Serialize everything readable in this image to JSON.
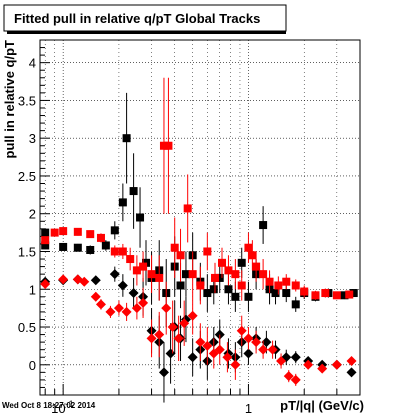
{
  "timestamp": "Wed Oct  8 18:27:02 2014",
  "chart_data": {
    "type": "scatter",
    "title": "Fitted pull in relative q/pT  Global Tracks",
    "xlabel": "pT/|q| (GeV/c)",
    "ylabel": "pull in relative q/pT",
    "xscale": "log",
    "xlim": [
      0.075,
      4.0
    ],
    "ylim": [
      -0.4,
      4.3
    ],
    "grid": true,
    "x_tick_labels": [
      "10^{-1}",
      "1"
    ],
    "y_tick_labels": [
      "0",
      "0.5",
      "1",
      "1.5",
      "2",
      "2.5",
      "3",
      "3.5",
      "4"
    ],
    "colors": {
      "black": "#000000",
      "red": "#ff0000"
    },
    "series": [
      {
        "color": "black",
        "marker": "square",
        "points": [
          [
            0.08,
            1.75,
            0.05
          ],
          [
            0.08,
            1.58,
            0.05
          ],
          [
            0.1,
            1.56,
            0.05
          ],
          [
            0.12,
            1.55,
            0.05
          ],
          [
            0.14,
            1.52,
            0.06
          ],
          [
            0.17,
            1.58,
            0.07
          ],
          [
            0.19,
            1.78,
            0.12
          ],
          [
            0.21,
            2.15,
            0.25
          ],
          [
            0.22,
            3.0,
            0.6
          ],
          [
            0.24,
            2.3,
            0.5
          ],
          [
            0.26,
            1.95,
            0.4
          ],
          [
            0.28,
            1.35,
            0.3
          ],
          [
            0.3,
            1.15,
            0.35
          ],
          [
            0.33,
            1.25,
            0.4
          ],
          [
            0.36,
            0.95,
            0.45
          ],
          [
            0.4,
            1.3,
            0.4
          ],
          [
            0.43,
            1.05,
            0.3
          ],
          [
            0.46,
            1.2,
            0.3
          ],
          [
            0.5,
            1.45,
            0.3
          ],
          [
            0.55,
            1.1,
            0.25
          ],
          [
            0.6,
            0.95,
            0.25
          ],
          [
            0.65,
            1.0,
            0.2
          ],
          [
            0.7,
            1.15,
            0.2
          ],
          [
            0.78,
            1.0,
            0.2
          ],
          [
            0.85,
            0.9,
            0.2
          ],
          [
            0.92,
            1.35,
            0.2
          ],
          [
            1.0,
            0.9,
            0.2
          ],
          [
            1.1,
            1.2,
            0.2
          ],
          [
            1.2,
            1.85,
            0.25
          ],
          [
            1.3,
            1.0,
            0.2
          ],
          [
            1.4,
            0.95,
            0.15
          ],
          [
            1.6,
            0.95,
            0.12
          ],
          [
            1.8,
            0.8,
            0.1
          ],
          [
            2.0,
            0.95,
            0.08
          ],
          [
            2.3,
            0.9,
            0.06
          ],
          [
            2.7,
            0.95,
            0.06
          ],
          [
            3.3,
            0.92,
            0.05
          ],
          [
            3.7,
            0.95,
            0.05
          ]
        ]
      },
      {
        "color": "black",
        "marker": "diamond",
        "points": [
          [
            0.08,
            1.1,
            0.05
          ],
          [
            0.1,
            1.12,
            0.05
          ],
          [
            0.12,
            1.13,
            0.05
          ],
          [
            0.15,
            1.12,
            0.05
          ],
          [
            0.19,
            1.2,
            0.1
          ],
          [
            0.21,
            1.05,
            0.15
          ],
          [
            0.24,
            0.95,
            0.2
          ],
          [
            0.27,
            0.9,
            0.25
          ],
          [
            0.3,
            0.45,
            0.3
          ],
          [
            0.33,
            0.3,
            0.35
          ],
          [
            0.35,
            -0.1,
            0.4
          ],
          [
            0.38,
            0.15,
            0.4
          ],
          [
            0.4,
            0.5,
            0.35
          ],
          [
            0.43,
            0.35,
            0.3
          ],
          [
            0.46,
            0.6,
            0.3
          ],
          [
            0.5,
            0.1,
            0.25
          ],
          [
            0.55,
            0.2,
            0.25
          ],
          [
            0.6,
            0.05,
            0.25
          ],
          [
            0.65,
            0.3,
            0.2
          ],
          [
            0.7,
            0.4,
            0.2
          ],
          [
            0.78,
            0.15,
            0.2
          ],
          [
            0.85,
            0.1,
            0.2
          ],
          [
            0.92,
            0.3,
            0.2
          ],
          [
            1.0,
            0.15,
            0.15
          ],
          [
            1.1,
            0.35,
            0.15
          ],
          [
            1.25,
            0.3,
            0.15
          ],
          [
            1.4,
            0.2,
            0.12
          ],
          [
            1.6,
            0.1,
            0.1
          ],
          [
            1.8,
            0.1,
            0.08
          ],
          [
            2.1,
            0.05,
            0.06
          ],
          [
            2.5,
            0.0,
            0.05
          ],
          [
            3.0,
            0.0,
            0.05
          ],
          [
            3.6,
            -0.1,
            0.05
          ]
        ]
      },
      {
        "color": "red",
        "marker": "square",
        "points": [
          [
            0.08,
            1.65,
            0.05
          ],
          [
            0.09,
            1.75,
            0.05
          ],
          [
            0.1,
            1.77,
            0.05
          ],
          [
            0.12,
            1.76,
            0.05
          ],
          [
            0.14,
            1.73,
            0.05
          ],
          [
            0.16,
            1.68,
            0.06
          ],
          [
            0.19,
            1.5,
            0.08
          ],
          [
            0.21,
            1.5,
            0.1
          ],
          [
            0.23,
            1.4,
            0.15
          ],
          [
            0.25,
            1.25,
            0.2
          ],
          [
            0.27,
            1.3,
            0.2
          ],
          [
            0.3,
            1.2,
            0.25
          ],
          [
            0.33,
            1.15,
            0.3
          ],
          [
            0.35,
            2.9,
            0.9
          ],
          [
            0.37,
            2.9,
            0.9
          ],
          [
            0.4,
            1.55,
            0.4
          ],
          [
            0.43,
            1.45,
            0.35
          ],
          [
            0.47,
            2.07,
            0.45
          ],
          [
            0.5,
            1.2,
            0.3
          ],
          [
            0.55,
            1.05,
            0.25
          ],
          [
            0.6,
            1.5,
            0.25
          ],
          [
            0.66,
            1.15,
            0.2
          ],
          [
            0.72,
            1.35,
            0.2
          ],
          [
            0.78,
            1.25,
            0.2
          ],
          [
            0.85,
            1.2,
            0.2
          ],
          [
            0.92,
            1.05,
            0.2
          ],
          [
            1.0,
            1.55,
            0.2
          ],
          [
            1.05,
            1.45,
            0.2
          ],
          [
            1.1,
            1.3,
            0.2
          ],
          [
            1.2,
            1.2,
            0.2
          ],
          [
            1.3,
            1.1,
            0.15
          ],
          [
            1.45,
            1.05,
            0.12
          ],
          [
            1.6,
            1.1,
            0.1
          ],
          [
            1.8,
            1.05,
            0.08
          ],
          [
            2.0,
            0.97,
            0.08
          ],
          [
            2.3,
            0.92,
            0.06
          ],
          [
            2.6,
            0.95,
            0.06
          ],
          [
            3.0,
            0.92,
            0.05
          ],
          [
            3.5,
            0.93,
            0.05
          ]
        ]
      },
      {
        "color": "red",
        "marker": "diamond",
        "points": [
          [
            0.08,
            1.07,
            0.05
          ],
          [
            0.1,
            1.13,
            0.05
          ],
          [
            0.12,
            1.13,
            0.05
          ],
          [
            0.13,
            1.1,
            0.05
          ],
          [
            0.15,
            0.9,
            0.06
          ],
          [
            0.16,
            0.8,
            0.07
          ],
          [
            0.18,
            0.7,
            0.08
          ],
          [
            0.2,
            0.75,
            0.1
          ],
          [
            0.22,
            0.7,
            0.12
          ],
          [
            0.25,
            0.75,
            0.15
          ],
          [
            0.27,
            0.82,
            0.2
          ],
          [
            0.3,
            0.35,
            0.25
          ],
          [
            0.33,
            0.4,
            0.3
          ],
          [
            0.36,
            0.75,
            0.35
          ],
          [
            0.39,
            0.5,
            0.35
          ],
          [
            0.42,
            0.35,
            0.3
          ],
          [
            0.45,
            0.55,
            0.3
          ],
          [
            0.5,
            0.65,
            0.25
          ],
          [
            0.55,
            0.3,
            0.25
          ],
          [
            0.6,
            0.25,
            0.25
          ],
          [
            0.65,
            0.15,
            0.2
          ],
          [
            0.7,
            0.2,
            0.2
          ],
          [
            0.77,
            0.1,
            0.2
          ],
          [
            0.85,
            0.0,
            0.2
          ],
          [
            0.92,
            0.45,
            0.2
          ],
          [
            1.0,
            0.35,
            0.15
          ],
          [
            1.1,
            0.3,
            0.15
          ],
          [
            1.2,
            0.2,
            0.12
          ],
          [
            1.35,
            0.2,
            0.12
          ],
          [
            1.5,
            0.05,
            0.1
          ],
          [
            1.65,
            -0.15,
            0.08
          ],
          [
            1.8,
            -0.2,
            0.08
          ],
          [
            2.1,
            0.0,
            0.06
          ],
          [
            2.5,
            -0.05,
            0.05
          ],
          [
            3.0,
            0.0,
            0.05
          ],
          [
            3.6,
            0.05,
            0.05
          ]
        ]
      }
    ]
  }
}
